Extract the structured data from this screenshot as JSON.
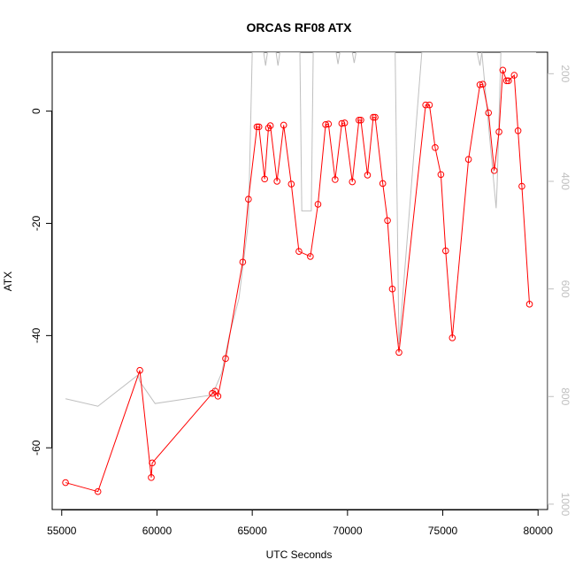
{
  "chart_data": {
    "type": "line",
    "title": "ORCAS RF08 ATX",
    "xlabel": "UTC Seconds",
    "ylabel": "ATX",
    "xlim": [
      54500,
      80500
    ],
    "ylim": [
      -71,
      10.5
    ],
    "x_ticks": [
      55000,
      60000,
      65000,
      70000,
      75000,
      80000
    ],
    "y_ticks": [
      -60,
      -40,
      -20,
      0
    ],
    "right_axis": {
      "ylim": [
        1010,
        160
      ],
      "ticks": [
        200,
        400,
        600,
        800,
        1000
      ],
      "color": "#bfbfbf"
    },
    "series": [
      {
        "color": "#ff0000",
        "style": "line+points",
        "points": [
          [
            55200,
            -66.2
          ],
          [
            56900,
            -67.8
          ],
          [
            59100,
            -46.2
          ],
          [
            59700,
            -65.3
          ],
          [
            59750,
            -62.7
          ],
          [
            62900,
            -50.3
          ],
          [
            63050,
            -49.9
          ],
          [
            63200,
            -50.8
          ],
          [
            63600,
            -44.1
          ],
          [
            64500,
            -26.9
          ],
          [
            64800,
            -15.7
          ],
          [
            65250,
            -2.8
          ],
          [
            65350,
            -2.8
          ],
          [
            65650,
            -12.1
          ],
          [
            65850,
            -3.0
          ],
          [
            65950,
            -2.6
          ],
          [
            66300,
            -12.5
          ],
          [
            66650,
            -2.5
          ],
          [
            67050,
            -13.0
          ],
          [
            67450,
            -25.0
          ],
          [
            68050,
            -25.9
          ],
          [
            68450,
            -16.6
          ],
          [
            68850,
            -2.4
          ],
          [
            69000,
            -2.3
          ],
          [
            69350,
            -12.2
          ],
          [
            69700,
            -2.2
          ],
          [
            69850,
            -2.1
          ],
          [
            70250,
            -12.6
          ],
          [
            70600,
            -1.6
          ],
          [
            70700,
            -1.6
          ],
          [
            71050,
            -11.4
          ],
          [
            71350,
            -1.1
          ],
          [
            71450,
            -1.1
          ],
          [
            71850,
            -12.9
          ],
          [
            72100,
            -19.5
          ],
          [
            72350,
            -31.7
          ],
          [
            72700,
            -43.0
          ],
          [
            74100,
            1.1
          ],
          [
            74300,
            1.1
          ],
          [
            74600,
            -6.5
          ],
          [
            74900,
            -11.3
          ],
          [
            75150,
            -24.9
          ],
          [
            75500,
            -40.4
          ],
          [
            76350,
            -8.6
          ],
          [
            76950,
            4.7
          ],
          [
            77100,
            4.8
          ],
          [
            77400,
            -0.3
          ],
          [
            77700,
            -10.6
          ],
          [
            77950,
            -3.7
          ],
          [
            78150,
            7.3
          ],
          [
            78350,
            5.4
          ],
          [
            78450,
            5.4
          ],
          [
            78750,
            6.4
          ],
          [
            78950,
            -3.5
          ],
          [
            79150,
            -13.4
          ],
          [
            79550,
            -34.4
          ]
        ]
      },
      {
        "color": "#bfbfbf",
        "style": "line",
        "axis": "right",
        "points": [
          [
            55200,
            804
          ],
          [
            56900,
            818
          ],
          [
            59000,
            760
          ],
          [
            59100,
            772
          ],
          [
            59900,
            813
          ],
          [
            62900,
            797
          ],
          [
            63400,
            756
          ],
          [
            63800,
            686
          ],
          [
            64300,
            618
          ],
          [
            64800,
            475
          ],
          [
            65000,
            160
          ],
          [
            65600,
            160
          ],
          [
            65700,
            185
          ],
          [
            65800,
            160
          ],
          [
            66250,
            160
          ],
          [
            66350,
            185
          ],
          [
            66450,
            160
          ],
          [
            67500,
            160
          ],
          [
            67600,
            455
          ],
          [
            68100,
            455
          ],
          [
            68200,
            160
          ],
          [
            69400,
            160
          ],
          [
            69500,
            182
          ],
          [
            69600,
            160
          ],
          [
            70250,
            160
          ],
          [
            70350,
            180
          ],
          [
            70450,
            160
          ],
          [
            72500,
            160
          ],
          [
            72700,
            703
          ],
          [
            73900,
            160
          ],
          [
            76000,
            160
          ],
          [
            76800,
            160
          ],
          [
            76950,
            185
          ],
          [
            77050,
            160
          ],
          [
            77800,
            450
          ],
          [
            77850,
            410
          ],
          [
            78050,
            160
          ],
          [
            79900,
            160
          ]
        ]
      }
    ]
  }
}
